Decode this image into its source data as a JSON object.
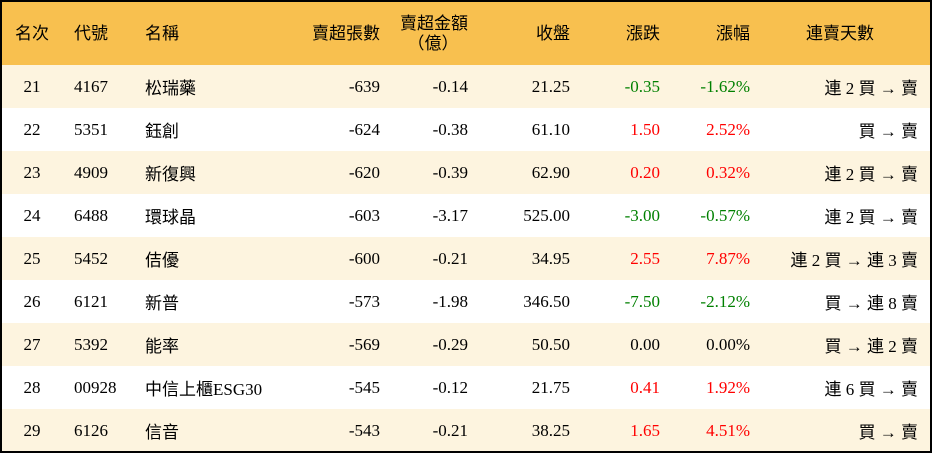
{
  "headers": [
    "名次",
    "代號",
    "名稱",
    "賣超張數",
    "賣超金額\n（億）",
    "收盤",
    "漲跌",
    "漲幅",
    "連賣天數"
  ],
  "header_amount_line1": "賣超金額",
  "header_amount_line2": "（億）",
  "colors": {
    "header_bg": "#F8C04F",
    "stripe_bg": "#FDF4DF",
    "up": "#FF0000",
    "down": "#008000"
  },
  "rows": [
    {
      "rank": "21",
      "code": "4167",
      "name": "松瑞藥",
      "net_sell_lots": "-639",
      "net_sell_amount": "-0.14",
      "close": "21.25",
      "change": "-0.35",
      "pct": "-1.62%",
      "trend": "down",
      "streak": "連 2 買 → 賣"
    },
    {
      "rank": "22",
      "code": "5351",
      "name": "鈺創",
      "net_sell_lots": "-624",
      "net_sell_amount": "-0.38",
      "close": "61.10",
      "change": "1.50",
      "pct": "2.52%",
      "trend": "up",
      "streak": "買 → 賣"
    },
    {
      "rank": "23",
      "code": "4909",
      "name": "新復興",
      "net_sell_lots": "-620",
      "net_sell_amount": "-0.39",
      "close": "62.90",
      "change": "0.20",
      "pct": "0.32%",
      "trend": "up",
      "streak": "連 2 買 → 賣"
    },
    {
      "rank": "24",
      "code": "6488",
      "name": "環球晶",
      "net_sell_lots": "-603",
      "net_sell_amount": "-3.17",
      "close": "525.00",
      "change": "-3.00",
      "pct": "-0.57%",
      "trend": "down",
      "streak": "連 2 買 → 賣"
    },
    {
      "rank": "25",
      "code": "5452",
      "name": "佶優",
      "net_sell_lots": "-600",
      "net_sell_amount": "-0.21",
      "close": "34.95",
      "change": "2.55",
      "pct": "7.87%",
      "trend": "up",
      "streak": "連 2 買 → 連 3 賣"
    },
    {
      "rank": "26",
      "code": "6121",
      "name": "新普",
      "net_sell_lots": "-573",
      "net_sell_amount": "-1.98",
      "close": "346.50",
      "change": "-7.50",
      "pct": "-2.12%",
      "trend": "down",
      "streak": "買 → 連 8 賣"
    },
    {
      "rank": "27",
      "code": "5392",
      "name": "能率",
      "net_sell_lots": "-569",
      "net_sell_amount": "-0.29",
      "close": "50.50",
      "change": "0.00",
      "pct": "0.00%",
      "trend": "flat",
      "streak": "買 → 連 2 賣"
    },
    {
      "rank": "28",
      "code": "00928",
      "name": "中信上櫃ESG30",
      "net_sell_lots": "-545",
      "net_sell_amount": "-0.12",
      "close": "21.75",
      "change": "0.41",
      "pct": "1.92%",
      "trend": "up",
      "streak": "連 6 買 → 賣"
    },
    {
      "rank": "29",
      "code": "6126",
      "name": "信音",
      "net_sell_lots": "-543",
      "net_sell_amount": "-0.21",
      "close": "38.25",
      "change": "1.65",
      "pct": "4.51%",
      "trend": "up",
      "streak": "買 → 賣"
    }
  ]
}
